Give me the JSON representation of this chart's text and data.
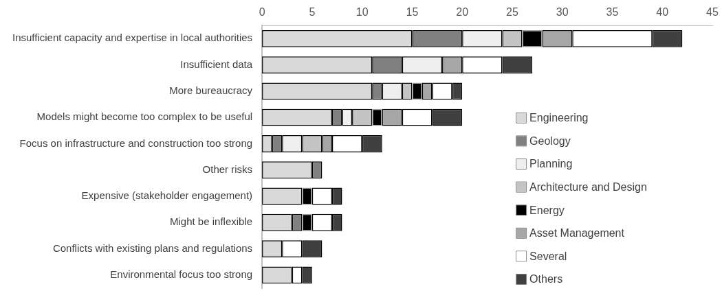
{
  "chart_data": {
    "type": "bar",
    "orientation": "horizontal",
    "stacked": true,
    "legend": "bottom right",
    "grid": false,
    "categories": [
      "Insufficient capacity and expertise in local authorities",
      "Insufficient data",
      "More bureaucracy",
      "Models might become too complex to be useful",
      "Focus on infrastructure and construction too strong",
      "Other risks",
      "Expensive (stakeholder engagement)",
      "Might be inflexible",
      "Conflicts with existing plans and regulations",
      "Environmental focus too strong"
    ],
    "xlim": [
      0,
      45
    ],
    "xticks": [
      0,
      5,
      10,
      15,
      20,
      25,
      30,
      35,
      40,
      45
    ],
    "series": [
      {
        "name": "Engineering",
        "color": "#d9d9d9",
        "values": [
          15,
          11,
          11,
          7,
          1,
          5,
          4,
          3,
          2,
          3
        ]
      },
      {
        "name": "Geology",
        "color": "#808080",
        "values": [
          5,
          3,
          1,
          1,
          1,
          1,
          0,
          1,
          0,
          0
        ]
      },
      {
        "name": "Planning",
        "color": "#efefef",
        "values": [
          4,
          4,
          2,
          1,
          2,
          0,
          0,
          0,
          0,
          0
        ]
      },
      {
        "name": "Architecture and Design",
        "color": "#c4c4c4",
        "values": [
          2,
          0,
          1,
          2,
          2,
          0,
          0,
          0,
          0,
          0
        ]
      },
      {
        "name": "Energy",
        "color": "#000000",
        "values": [
          2,
          0,
          1,
          1,
          0,
          0,
          1,
          1,
          0,
          0
        ]
      },
      {
        "name": "Asset Management",
        "color": "#a6a6a6",
        "values": [
          3,
          2,
          1,
          2,
          1,
          0,
          0,
          0,
          0,
          0
        ]
      },
      {
        "name": "Several",
        "color": "#ffffff",
        "values": [
          8,
          4,
          2,
          3,
          3,
          0,
          2,
          2,
          2,
          1
        ]
      },
      {
        "name": "Others",
        "color": "#404040",
        "values": [
          3,
          3,
          1,
          3,
          2,
          0,
          1,
          1,
          2,
          1
        ]
      }
    ]
  }
}
